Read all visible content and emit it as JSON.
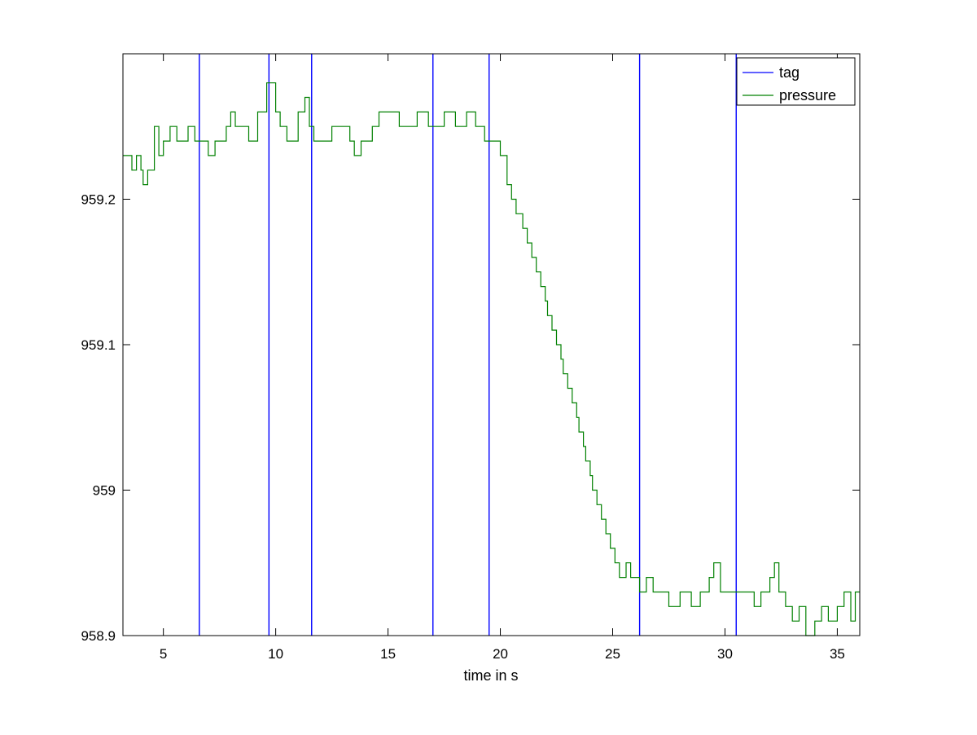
{
  "chart_data": {
    "type": "line",
    "title": "",
    "xlabel": "time in s",
    "ylabel": "",
    "xlim": [
      3.2,
      36.0
    ],
    "ylim": [
      958.9,
      959.3
    ],
    "xticks": [
      "5",
      "10",
      "15",
      "20",
      "25",
      "30",
      "35"
    ],
    "yticks": [
      "958.9",
      "959",
      "959.1",
      "959.2"
    ],
    "grid": false,
    "legend_position": "top-right",
    "series": [
      {
        "name": "tag",
        "color": "#0000ff",
        "kind": "vertical-lines",
        "x": [
          6.6,
          9.7,
          11.6,
          17.0,
          19.5,
          26.2,
          30.5
        ]
      },
      {
        "name": "pressure",
        "color": "#008000",
        "kind": "step",
        "points": [
          [
            3.2,
            959.23
          ],
          [
            3.6,
            959.22
          ],
          [
            3.8,
            959.23
          ],
          [
            4.0,
            959.22
          ],
          [
            4.1,
            959.21
          ],
          [
            4.3,
            959.22
          ],
          [
            4.6,
            959.25
          ],
          [
            4.8,
            959.23
          ],
          [
            5.0,
            959.24
          ],
          [
            5.3,
            959.25
          ],
          [
            5.6,
            959.24
          ],
          [
            6.1,
            959.25
          ],
          [
            6.4,
            959.24
          ],
          [
            7.0,
            959.23
          ],
          [
            7.3,
            959.24
          ],
          [
            7.8,
            959.25
          ],
          [
            8.0,
            959.26
          ],
          [
            8.2,
            959.25
          ],
          [
            8.8,
            959.24
          ],
          [
            9.2,
            959.26
          ],
          [
            9.6,
            959.28
          ],
          [
            10.0,
            959.26
          ],
          [
            10.2,
            959.25
          ],
          [
            10.5,
            959.24
          ],
          [
            11.0,
            959.26
          ],
          [
            11.3,
            959.27
          ],
          [
            11.5,
            959.25
          ],
          [
            11.7,
            959.24
          ],
          [
            12.5,
            959.25
          ],
          [
            13.3,
            959.24
          ],
          [
            13.5,
            959.23
          ],
          [
            13.8,
            959.24
          ],
          [
            14.3,
            959.25
          ],
          [
            14.6,
            959.26
          ],
          [
            15.5,
            959.25
          ],
          [
            16.3,
            959.26
          ],
          [
            16.8,
            959.25
          ],
          [
            17.5,
            959.26
          ],
          [
            18.0,
            959.25
          ],
          [
            18.5,
            959.26
          ],
          [
            18.9,
            959.25
          ],
          [
            19.3,
            959.24
          ],
          [
            19.7,
            959.24
          ],
          [
            20.0,
            959.23
          ],
          [
            20.3,
            959.21
          ],
          [
            20.5,
            959.2
          ],
          [
            20.7,
            959.19
          ],
          [
            21.0,
            959.18
          ],
          [
            21.2,
            959.17
          ],
          [
            21.4,
            959.16
          ],
          [
            21.6,
            959.15
          ],
          [
            21.8,
            959.14
          ],
          [
            22.0,
            959.13
          ],
          [
            22.1,
            959.12
          ],
          [
            22.3,
            959.11
          ],
          [
            22.5,
            959.1
          ],
          [
            22.7,
            959.09
          ],
          [
            22.8,
            959.08
          ],
          [
            23.0,
            959.07
          ],
          [
            23.2,
            959.06
          ],
          [
            23.4,
            959.05
          ],
          [
            23.5,
            959.04
          ],
          [
            23.7,
            959.03
          ],
          [
            23.8,
            959.02
          ],
          [
            24.0,
            959.01
          ],
          [
            24.1,
            959.0
          ],
          [
            24.3,
            958.99
          ],
          [
            24.5,
            958.98
          ],
          [
            24.7,
            958.97
          ],
          [
            24.9,
            958.96
          ],
          [
            25.1,
            958.95
          ],
          [
            25.3,
            958.94
          ],
          [
            25.6,
            958.95
          ],
          [
            25.8,
            958.94
          ],
          [
            26.2,
            958.93
          ],
          [
            26.5,
            958.94
          ],
          [
            26.8,
            958.93
          ],
          [
            27.5,
            958.92
          ],
          [
            28.0,
            958.93
          ],
          [
            28.5,
            958.92
          ],
          [
            28.9,
            958.93
          ],
          [
            29.3,
            958.94
          ],
          [
            29.5,
            958.95
          ],
          [
            29.8,
            958.93
          ],
          [
            30.2,
            958.93
          ],
          [
            31.0,
            958.93
          ],
          [
            31.3,
            958.92
          ],
          [
            31.6,
            958.93
          ],
          [
            32.0,
            958.94
          ],
          [
            32.2,
            958.95
          ],
          [
            32.4,
            958.93
          ],
          [
            32.7,
            958.92
          ],
          [
            33.0,
            958.91
          ],
          [
            33.3,
            958.92
          ],
          [
            33.6,
            958.9
          ],
          [
            34.0,
            958.91
          ],
          [
            34.3,
            958.92
          ],
          [
            34.6,
            958.91
          ],
          [
            35.0,
            958.92
          ],
          [
            35.3,
            958.93
          ],
          [
            35.6,
            958.91
          ],
          [
            35.8,
            958.93
          ],
          [
            36.0,
            958.93
          ]
        ]
      }
    ]
  }
}
